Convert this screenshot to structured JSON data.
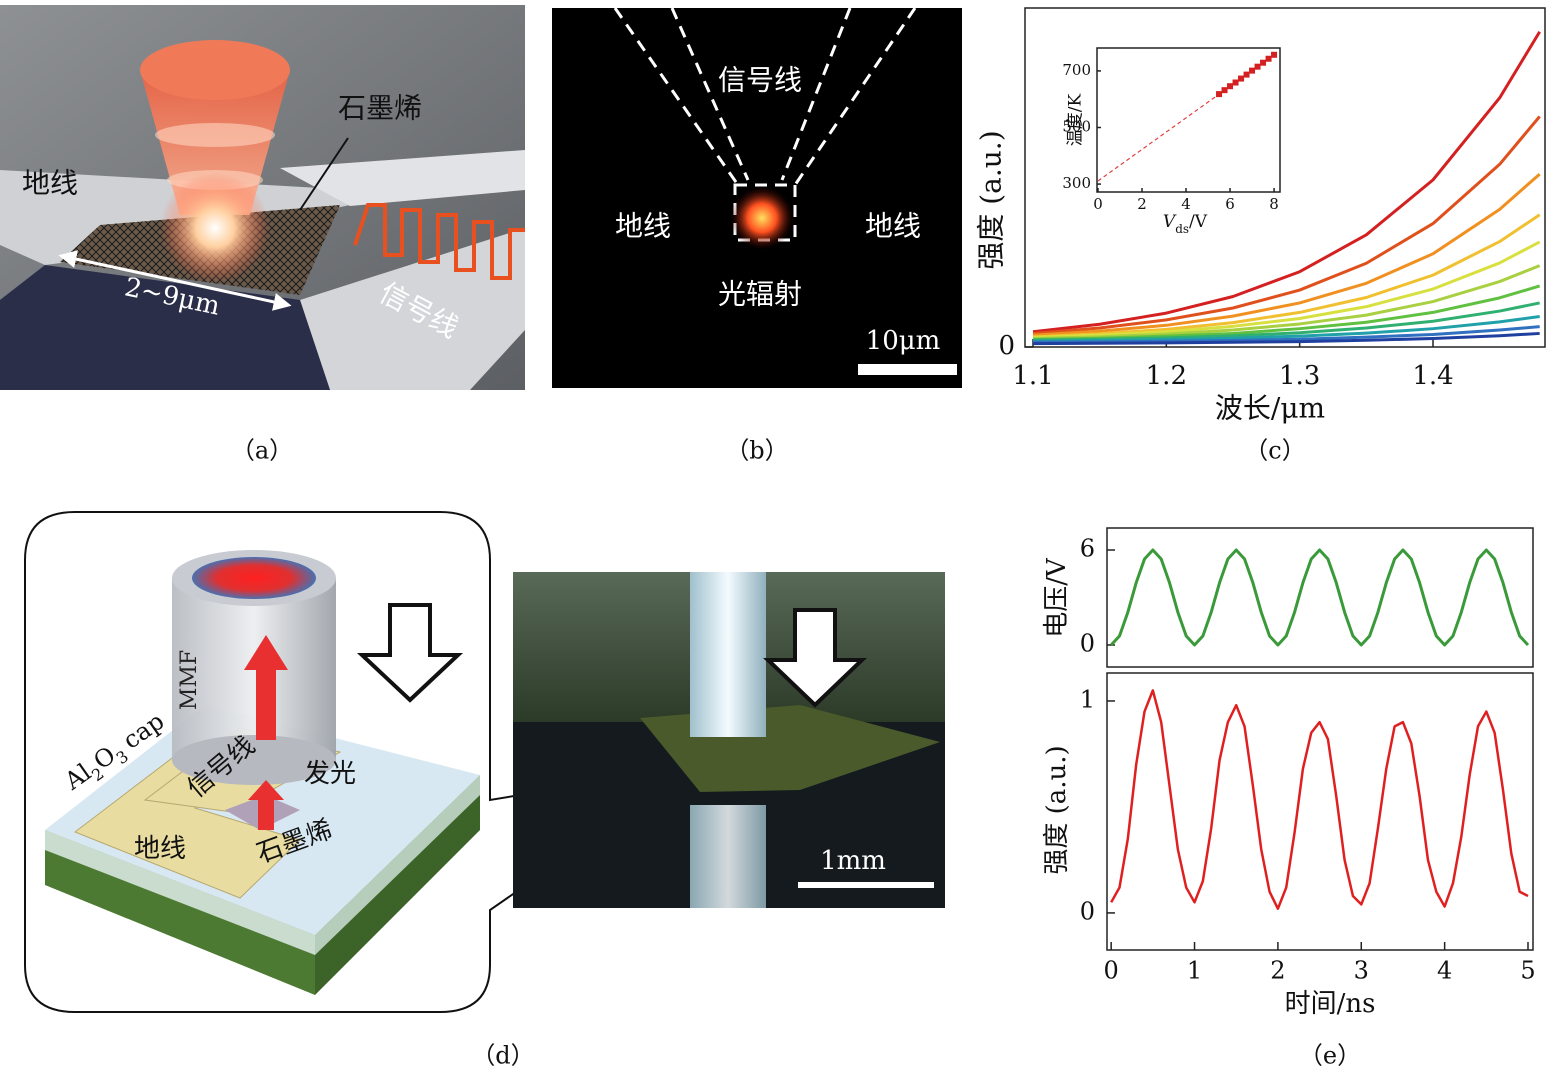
{
  "panel_a": {
    "caption": "（a）",
    "ground": "地线",
    "graphene": "石墨烯",
    "signal": "信号线",
    "size": "2~9μm"
  },
  "panel_b": {
    "caption": "（b）",
    "signal": "信号线",
    "ground_left": "地线",
    "ground_right": "地线",
    "emission": "光辐射",
    "scale": "10μm"
  },
  "panel_d": {
    "caption": "（d）",
    "fiber": "MMF",
    "cap": [
      "Al",
      "2",
      "O",
      "3",
      "cap"
    ],
    "signal": "信号线",
    "emission": "发光",
    "ground": "地线",
    "graphene": "石墨烯",
    "scale": "1mm"
  },
  "chart_data": [
    {
      "type": "line",
      "caption": "（c）",
      "xlabel": "波长/μm",
      "ylabel": "强度 (a.u.)",
      "x": [
        1.1,
        1.15,
        1.2,
        1.25,
        1.3,
        1.35,
        1.4,
        1.45,
        1.48
      ],
      "xlim": [
        1.094,
        1.484
      ],
      "xticks": [
        1.1,
        1.2,
        1.3,
        1.4
      ],
      "ylim": [
        0,
        1
      ],
      "yticks": [
        0
      ],
      "series": [
        {
          "color": "#d42020",
          "values": [
            0.045,
            0.067,
            0.1,
            0.149,
            0.222,
            0.331,
            0.493,
            0.735,
            0.93
          ]
        },
        {
          "color": "#e0501c",
          "values": [
            0.04,
            0.056,
            0.08,
            0.115,
            0.168,
            0.247,
            0.364,
            0.539,
            0.68
          ]
        },
        {
          "color": "#f09020",
          "values": [
            0.035,
            0.047,
            0.064,
            0.091,
            0.13,
            0.188,
            0.275,
            0.406,
            0.51
          ]
        },
        {
          "color": "#f0c030",
          "values": [
            0.03,
            0.039,
            0.052,
            0.072,
            0.102,
            0.146,
            0.212,
            0.311,
            0.39
          ]
        },
        {
          "color": "#d8e040",
          "values": [
            0.028,
            0.035,
            0.045,
            0.061,
            0.084,
            0.119,
            0.171,
            0.248,
            0.31
          ]
        },
        {
          "color": "#a8d040",
          "values": [
            0.025,
            0.03,
            0.038,
            0.05,
            0.068,
            0.094,
            0.134,
            0.193,
            0.24
          ]
        },
        {
          "color": "#60c040",
          "values": [
            0.022,
            0.026,
            0.032,
            0.04,
            0.054,
            0.073,
            0.102,
            0.145,
            0.18
          ]
        },
        {
          "color": "#30b070",
          "values": [
            0.02,
            0.023,
            0.027,
            0.033,
            0.042,
            0.056,
            0.076,
            0.106,
            0.13
          ]
        },
        {
          "color": "#20a0a8",
          "values": [
            0.017,
            0.019,
            0.022,
            0.026,
            0.032,
            0.041,
            0.054,
            0.074,
            0.09
          ]
        },
        {
          "color": "#3070c0",
          "values": [
            0.014,
            0.015,
            0.017,
            0.019,
            0.023,
            0.029,
            0.037,
            0.05,
            0.06
          ]
        },
        {
          "color": "#2040a0",
          "values": [
            0.01,
            0.011,
            0.012,
            0.014,
            0.016,
            0.02,
            0.025,
            0.033,
            0.04
          ]
        }
      ]
    },
    {
      "type": "scatter",
      "xlabel": [
        "V",
        "ds",
        "/V"
      ],
      "ylabel": "温度/K",
      "xlim": [
        -0.045,
        8.27
      ],
      "xticks": [
        0,
        2,
        4,
        6,
        8
      ],
      "ylim": [
        272,
        781
      ],
      "yticks": [
        300,
        500,
        700
      ],
      "series": [
        {
          "color": "#e04040",
          "style": "dashed",
          "x": [
            0,
            8
          ],
          "values": [
            311,
            757
          ]
        },
        {
          "color": "#d42020",
          "style": "markers",
          "x": [
            5.5,
            5.75,
            6,
            6.25,
            6.5,
            6.75,
            7,
            7.25,
            7.5,
            7.75,
            8
          ],
          "values": [
            618,
            632,
            646,
            659,
            673,
            687,
            701,
            715,
            729,
            743,
            757
          ]
        }
      ]
    },
    {
      "type": "line",
      "ylabel": "电压/V",
      "x": [
        0,
        0.1,
        0.2,
        0.3,
        0.4,
        0.5,
        0.6,
        0.7,
        0.8,
        0.9,
        1,
        1.1,
        1.2,
        1.3,
        1.4,
        1.5,
        1.6,
        1.7,
        1.8,
        1.9,
        2,
        2.1,
        2.2,
        2.3,
        2.4,
        2.5,
        2.6,
        2.7,
        2.8,
        2.9,
        3,
        3.1,
        3.2,
        3.3,
        3.4,
        3.5,
        3.6,
        3.7,
        3.8,
        3.9,
        4,
        4.1,
        4.2,
        4.3,
        4.4,
        4.5,
        4.6,
        4.7,
        4.8,
        4.9,
        5
      ],
      "xlim": [
        -0.05,
        5.06
      ],
      "ylim": [
        -1.39,
        7.39
      ],
      "yticks": [
        0,
        6
      ],
      "series": [
        {
          "color": "#3a9a3a",
          "values": [
            0,
            0.57,
            2.07,
            3.93,
            5.43,
            6,
            5.43,
            3.93,
            2.07,
            0.57,
            0,
            0.57,
            2.07,
            3.93,
            5.43,
            6,
            5.43,
            3.93,
            2.07,
            0.57,
            0,
            0.57,
            2.07,
            3.93,
            5.43,
            6,
            5.43,
            3.93,
            2.07,
            0.57,
            0,
            0.57,
            2.07,
            3.93,
            5.43,
            6,
            5.43,
            3.93,
            2.07,
            0.57,
            0,
            0.57,
            2.07,
            3.93,
            5.43,
            6,
            5.43,
            3.93,
            2.07,
            0.57,
            0
          ]
        }
      ]
    },
    {
      "type": "line",
      "caption": "（e）",
      "xlabel": "时间/ns",
      "ylabel": "强度 (a.u.)",
      "x": [
        0,
        0.1,
        0.2,
        0.3,
        0.4,
        0.5,
        0.6,
        0.7,
        0.8,
        0.9,
        1,
        1.1,
        1.2,
        1.3,
        1.4,
        1.5,
        1.6,
        1.7,
        1.8,
        1.9,
        2,
        2.1,
        2.2,
        2.3,
        2.4,
        2.5,
        2.6,
        2.7,
        2.8,
        2.9,
        3,
        3.1,
        3.2,
        3.3,
        3.4,
        3.5,
        3.6,
        3.7,
        3.8,
        3.9,
        4,
        4.1,
        4.2,
        4.3,
        4.4,
        4.5,
        4.6,
        4.7,
        4.8,
        4.9,
        5
      ],
      "xlim": [
        -0.05,
        5.06
      ],
      "xticks": [
        0,
        1,
        2,
        3,
        4,
        5
      ],
      "ylim": [
        -0.175,
        1.132
      ],
      "yticks": [
        0,
        1
      ],
      "series": [
        {
          "color": "#e02020",
          "values": [
            0.05,
            0.12,
            0.35,
            0.7,
            0.95,
            1.05,
            0.9,
            0.6,
            0.3,
            0.12,
            0.05,
            0.15,
            0.4,
            0.72,
            0.9,
            0.98,
            0.88,
            0.6,
            0.3,
            0.1,
            0.02,
            0.12,
            0.38,
            0.68,
            0.85,
            0.9,
            0.82,
            0.55,
            0.25,
            0.08,
            0.04,
            0.14,
            0.4,
            0.68,
            0.88,
            0.9,
            0.8,
            0.55,
            0.25,
            0.1,
            0.03,
            0.14,
            0.36,
            0.65,
            0.88,
            0.95,
            0.85,
            0.58,
            0.28,
            0.1,
            0.08
          ]
        }
      ]
    }
  ]
}
